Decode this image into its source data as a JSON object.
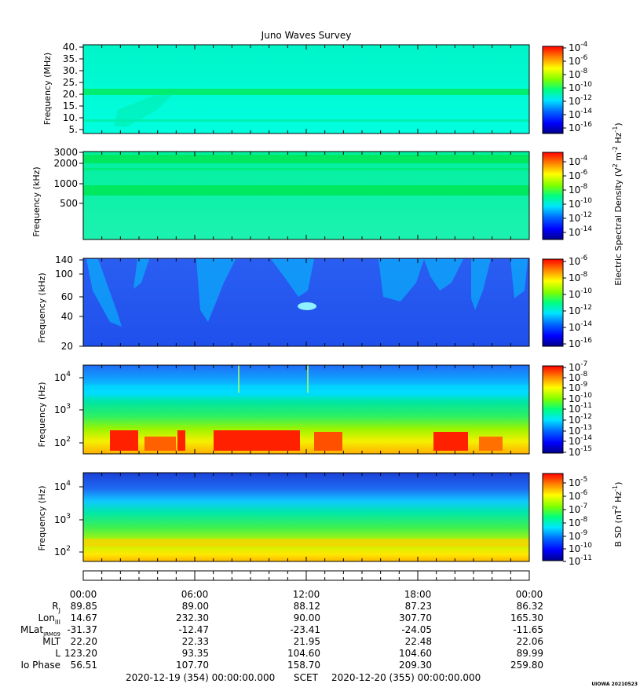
{
  "title": "Juno Waves Survey",
  "colors": {
    "background": "#2f5cf0",
    "colormap": [
      "#00008b",
      "#0000ff",
      "#0066ff",
      "#00e5ff",
      "#00ff7f",
      "#7fff00",
      "#ffff00",
      "#ff7f00",
      "#ff0000"
    ]
  },
  "chart_data": [
    {
      "type": "heatmap",
      "ylabel": "Frequency (MHz)",
      "yticks": [
        "40.",
        "35.",
        "30.",
        "25.",
        "20.",
        "15.",
        "10.",
        "5."
      ],
      "colorbar_ticks": [
        {
          "base": "10",
          "exp": "-4"
        },
        {
          "base": "10",
          "exp": "-6"
        },
        {
          "base": "10",
          "exp": "-8"
        },
        {
          "base": "10",
          "exp": "-10"
        },
        {
          "base": "10",
          "exp": "-12"
        },
        {
          "base": "10",
          "exp": "-14"
        },
        {
          "base": "10",
          "exp": "-16"
        }
      ]
    },
    {
      "type": "heatmap",
      "ylabel": "Frequency (kHz)",
      "yticks": [
        "3000",
        "2000",
        "1000",
        "500"
      ],
      "colorbar_ticks": [
        {
          "base": "10",
          "exp": "-4"
        },
        {
          "base": "10",
          "exp": "-6"
        },
        {
          "base": "10",
          "exp": "-8"
        },
        {
          "base": "10",
          "exp": "-10"
        },
        {
          "base": "10",
          "exp": "-12"
        },
        {
          "base": "10",
          "exp": "-14"
        }
      ]
    },
    {
      "type": "heatmap",
      "ylabel": "Frequency (kHz)",
      "yticks": [
        "140",
        "100",
        "60",
        "40",
        "20"
      ],
      "colorbar_ticks": [
        {
          "base": "10",
          "exp": "-6"
        },
        {
          "base": "10",
          "exp": "-8"
        },
        {
          "base": "10",
          "exp": "-10"
        },
        {
          "base": "10",
          "exp": "-12"
        },
        {
          "base": "10",
          "exp": "-14"
        },
        {
          "base": "10",
          "exp": "-16"
        }
      ]
    },
    {
      "type": "heatmap",
      "ylabel": "Frequency (Hz)",
      "yticks": [
        {
          "base": "10",
          "exp": "4"
        },
        {
          "base": "10",
          "exp": "3"
        },
        {
          "base": "10",
          "exp": "2"
        }
      ],
      "colorbar_ticks": [
        {
          "base": "10",
          "exp": "-7"
        },
        {
          "base": "10",
          "exp": "-8"
        },
        {
          "base": "10",
          "exp": "-9"
        },
        {
          "base": "10",
          "exp": "-10"
        },
        {
          "base": "10",
          "exp": "-11"
        },
        {
          "base": "10",
          "exp": "-12"
        },
        {
          "base": "10",
          "exp": "-13"
        },
        {
          "base": "10",
          "exp": "-14"
        },
        {
          "base": "10",
          "exp": "-15"
        }
      ]
    },
    {
      "type": "heatmap",
      "ylabel": "Frequency (Hz)",
      "yticks": [
        {
          "base": "10",
          "exp": "4"
        },
        {
          "base": "10",
          "exp": "3"
        },
        {
          "base": "10",
          "exp": "2"
        }
      ],
      "colorbar_ticks": [
        {
          "base": "10",
          "exp": "-5"
        },
        {
          "base": "10",
          "exp": "-6"
        },
        {
          "base": "10",
          "exp": "-7"
        },
        {
          "base": "10",
          "exp": "-8"
        },
        {
          "base": "10",
          "exp": "-9"
        },
        {
          "base": "10",
          "exp": "-10"
        },
        {
          "base": "10",
          "exp": "-11"
        }
      ]
    }
  ],
  "colorbar_labels": {
    "electric": {
      "prefix": "Electric Spectral Density (V",
      "sup1": "2",
      "mid": " m",
      "sup2": "-2",
      "mid2": " Hz",
      "sup3": "-1",
      "suffix": ")"
    },
    "magnetic": {
      "prefix": "B SD (nT",
      "sup1": "2",
      "mid": " Hz",
      "sup2": "-1",
      "suffix": ")"
    }
  },
  "time_axis": {
    "labels": [
      "00:00",
      "06:00",
      "12:00",
      "18:00",
      "00:00"
    ]
  },
  "ephemeris": {
    "rows": [
      {
        "label": "R",
        "sub": "J",
        "values": [
          "89.85",
          "89.00",
          "88.12",
          "87.23",
          "86.32"
        ]
      },
      {
        "label": "Lon",
        "sub": "III",
        "values": [
          "14.67",
          "232.30",
          "90.00",
          "307.70",
          "165.30"
        ]
      },
      {
        "label": "MLat",
        "sub": "JRM09",
        "values": [
          "-31.37",
          "-12.47",
          "-23.41",
          "-24.05",
          "-11.65"
        ]
      },
      {
        "label": "MLT",
        "sub": "",
        "values": [
          "22.20",
          "22.33",
          "21.95",
          "22.48",
          "22.06"
        ]
      },
      {
        "label": "L",
        "sub": "",
        "values": [
          "123.20",
          "93.35",
          "104.60",
          "104.60",
          "89.99"
        ]
      },
      {
        "label": "Io Phase",
        "sub": "",
        "values": [
          "56.51",
          "107.70",
          "158.70",
          "209.30",
          "259.80"
        ]
      }
    ]
  },
  "footer": {
    "start": "2020-12-19 (354) 00:00:00.000",
    "scet": "SCET",
    "end": "2020-12-20 (355) 00:00:00.000",
    "credit": "UIOWA 20210523"
  }
}
